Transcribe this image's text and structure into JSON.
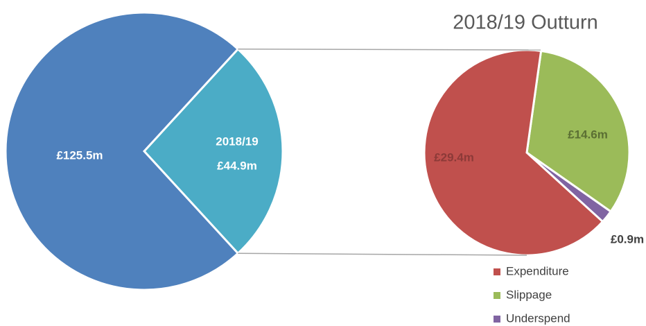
{
  "chart_data": [
    {
      "type": "pie",
      "categories": [
        null,
        "2018/19"
      ],
      "values": [
        125.5,
        44.9
      ],
      "value_labels": [
        "£125.5m",
        "£44.9m"
      ],
      "colors": [
        "#4f81bd",
        "#4bacc6"
      ]
    },
    {
      "type": "pie",
      "title": "2018/19 Outturn",
      "categories": [
        "Expenditure",
        "Slippage",
        "Underspend"
      ],
      "values": [
        29.4,
        14.6,
        0.9
      ],
      "value_labels": [
        "£29.4m",
        "£14.6m",
        "£0.9m"
      ],
      "colors": [
        "#c0504d",
        "#9bbb59",
        "#8064a2"
      ],
      "legend": "bottom-right"
    }
  ]
}
